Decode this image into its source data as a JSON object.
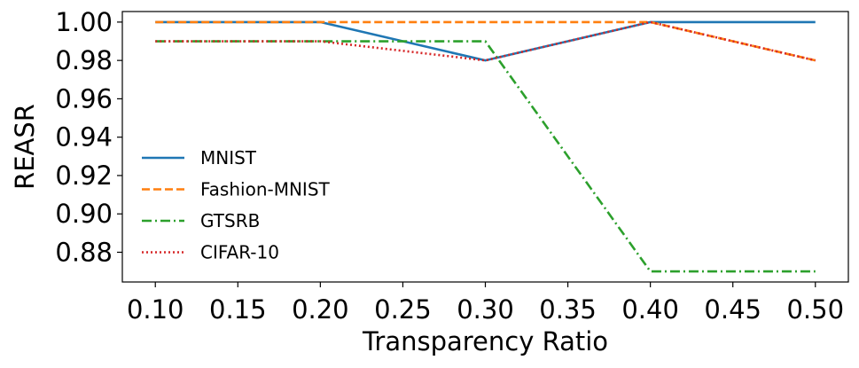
{
  "chart_data": {
    "type": "line",
    "x": [
      0.1,
      0.2,
      0.3,
      0.4,
      0.5
    ],
    "series": [
      {
        "name": "MNIST",
        "values": [
          1.0,
          1.0,
          0.98,
          1.0,
          1.0
        ],
        "color": "#1f77b4",
        "dash": "solid"
      },
      {
        "name": "Fashion-MNIST",
        "values": [
          1.0,
          1.0,
          1.0,
          1.0,
          0.98
        ],
        "color": "#ff7f0e",
        "dash": "dashed"
      },
      {
        "name": "GTSRB",
        "values": [
          0.99,
          0.99,
          0.99,
          0.87,
          0.87
        ],
        "color": "#2ca02c",
        "dash": "dashdot"
      },
      {
        "name": "CIFAR-10",
        "values": [
          0.99,
          0.99,
          0.98,
          1.0,
          0.98
        ],
        "color": "#d62728",
        "dash": "dotted"
      }
    ],
    "xlabel": "Transparency Ratio",
    "ylabel": "REASR",
    "xlim": [
      0.08,
      0.52
    ],
    "ylim": [
      0.8645,
      1.0055
    ],
    "xticks": [
      0.1,
      0.15,
      0.2,
      0.25,
      0.3,
      0.35,
      0.4,
      0.45,
      0.5
    ],
    "yticks": [
      0.88,
      0.9,
      0.92,
      0.94,
      0.96,
      0.98,
      1.0
    ],
    "xtick_labels": [
      "0.10",
      "0.15",
      "0.20",
      "0.25",
      "0.30",
      "0.35",
      "0.40",
      "0.45",
      "0.50"
    ],
    "ytick_labels": [
      "0.88",
      "0.90",
      "0.92",
      "0.94",
      "0.96",
      "0.98",
      "1.00"
    ],
    "grid": false,
    "legend_position": "center-left"
  }
}
